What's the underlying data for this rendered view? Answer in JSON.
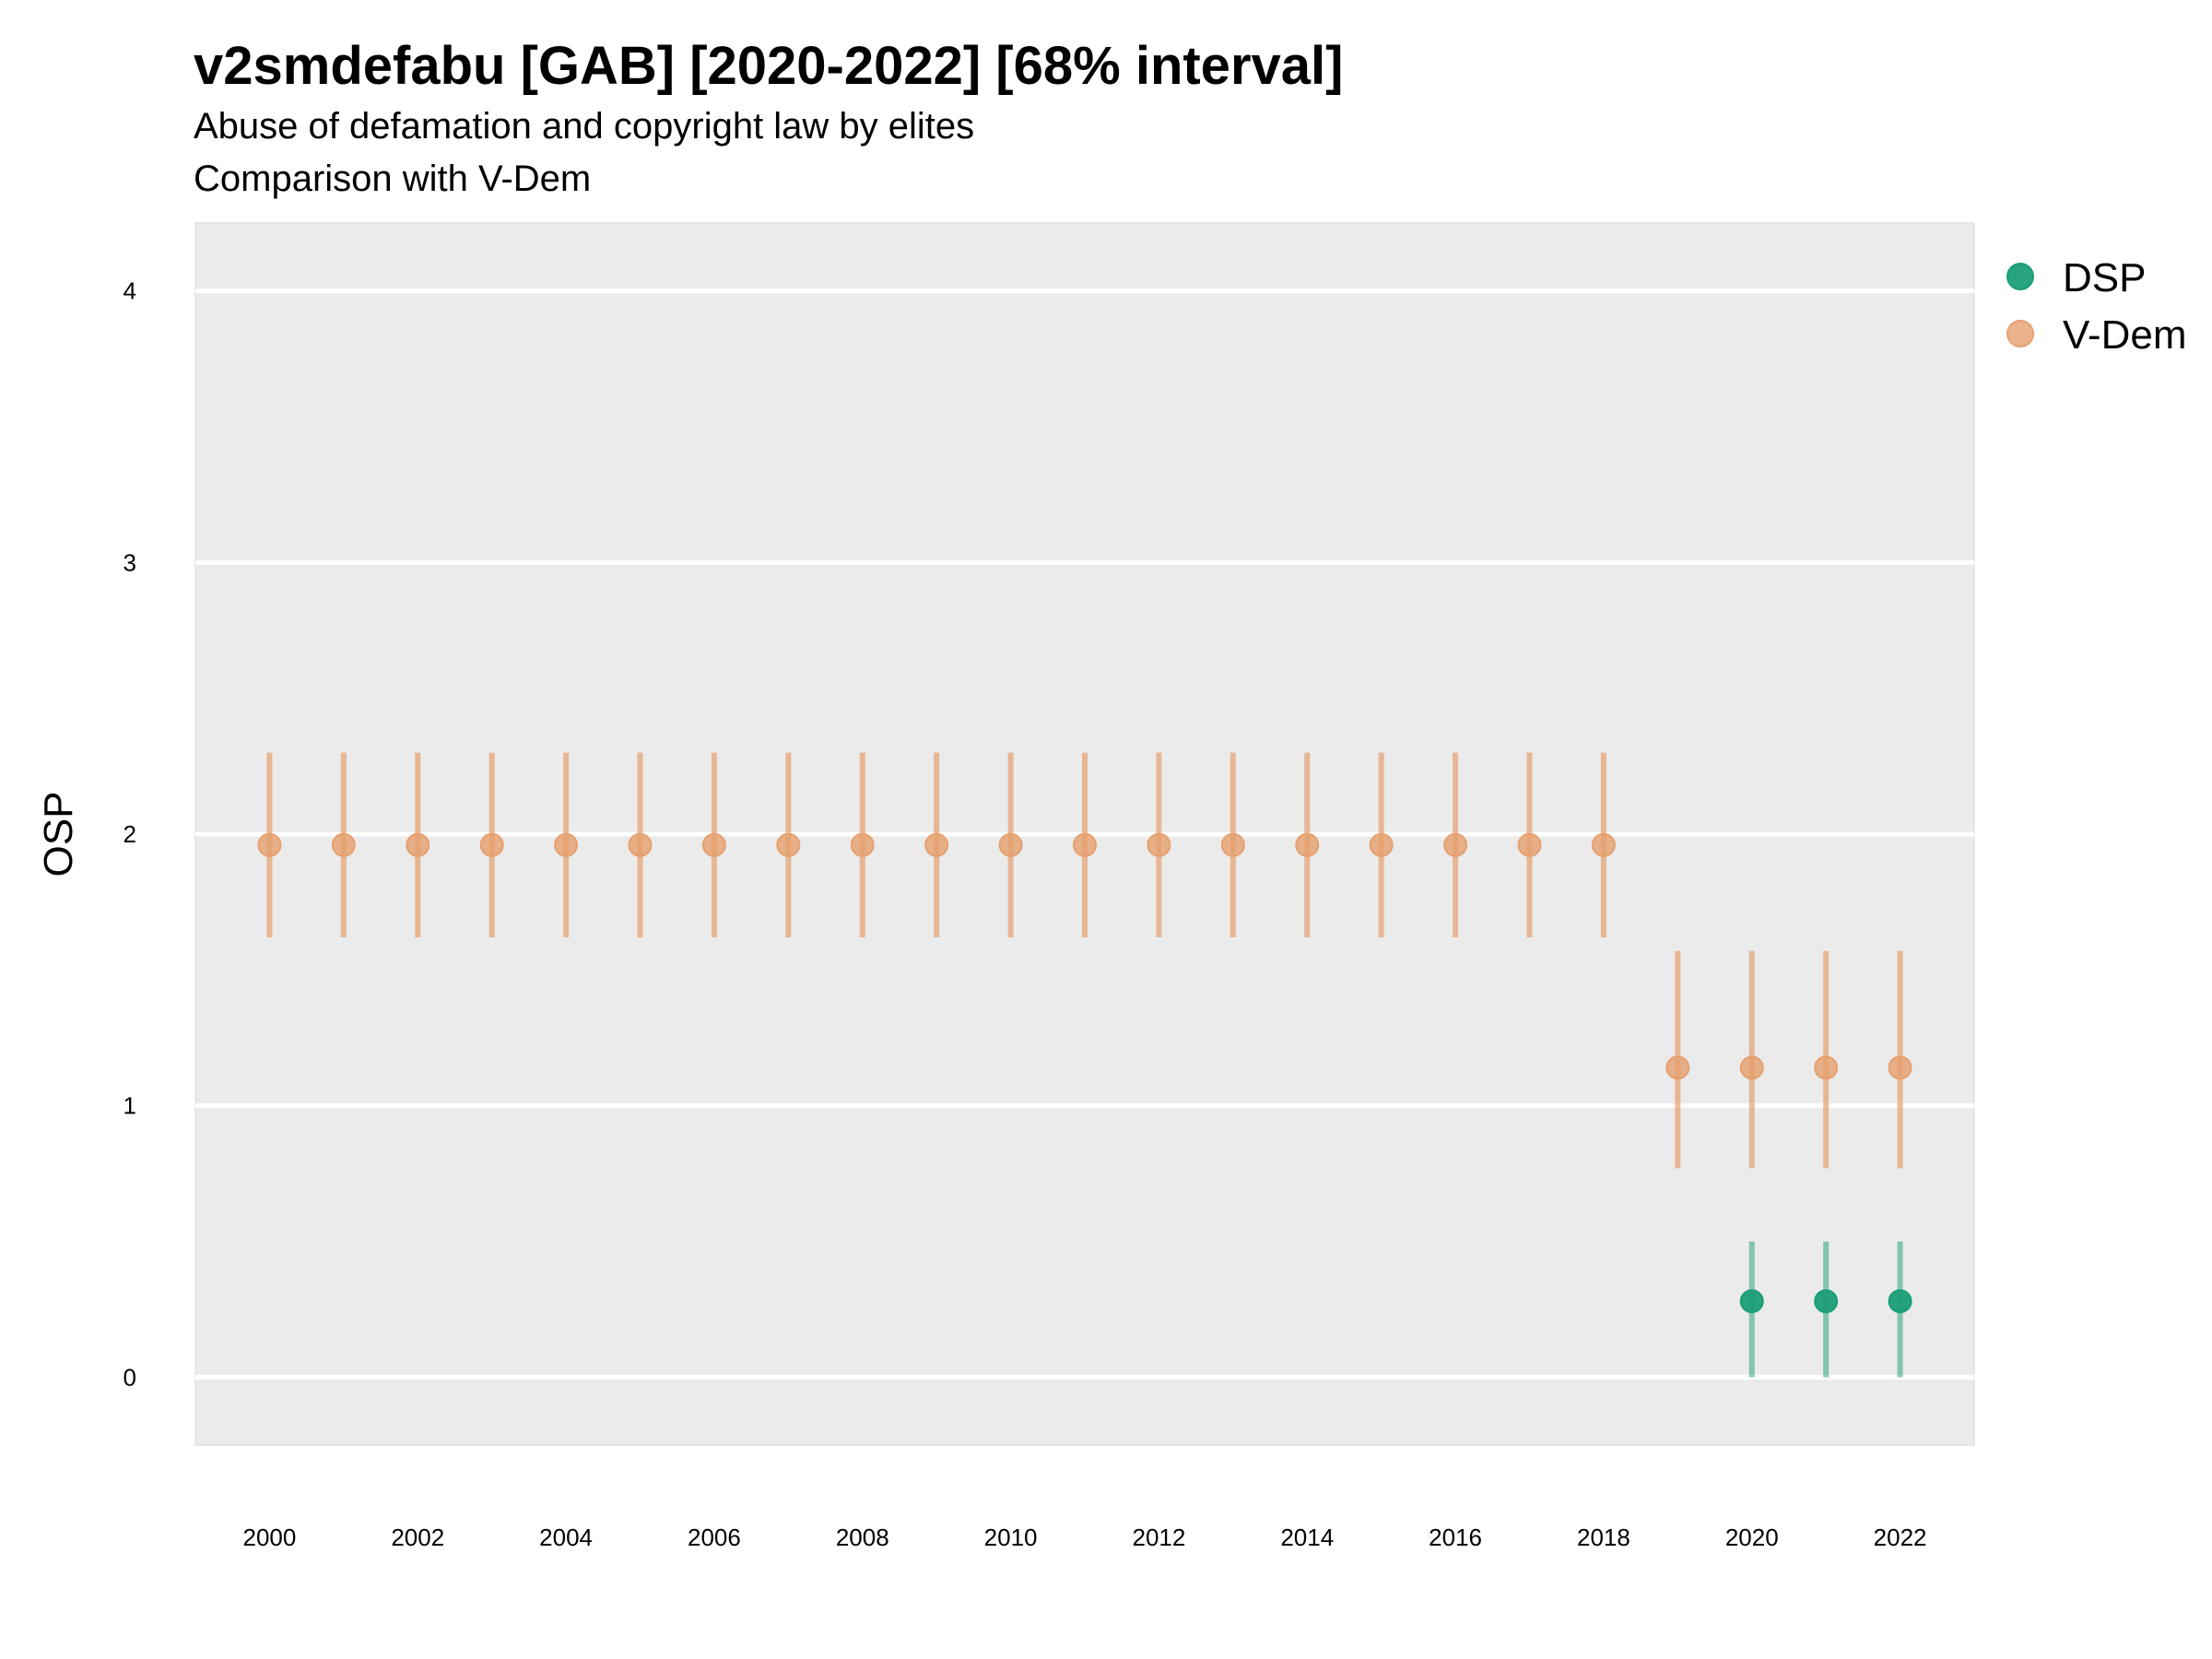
{
  "chart_data": {
    "type": "scatter",
    "title": "v2smdefabu [GAB] [2020-2022] [68% interval]",
    "subtitle_line1": "Abuse of defamation and copyright law by elites",
    "subtitle_line2": "Comparison with V-Dem",
    "ylabel": "OSP",
    "xlabel": "",
    "ylim": [
      -0.25,
      4.25
    ],
    "xlim": [
      1999,
      2023
    ],
    "x_ticks": [
      2000,
      2002,
      2004,
      2006,
      2008,
      2010,
      2012,
      2014,
      2016,
      2018,
      2020,
      2022
    ],
    "y_ticks": [
      0,
      1,
      2,
      3,
      4
    ],
    "grid": true,
    "legend_position": "right",
    "series": [
      {
        "name": "DSP",
        "color": "#1b9e77",
        "points": [
          {
            "x": 2020,
            "y": 0.28,
            "lo": 0.0,
            "hi": 0.5
          },
          {
            "x": 2021,
            "y": 0.28,
            "lo": 0.0,
            "hi": 0.5
          },
          {
            "x": 2022,
            "y": 0.28,
            "lo": 0.0,
            "hi": 0.5
          }
        ]
      },
      {
        "name": "V-Dem",
        "color": "#e6a06e",
        "points": [
          {
            "x": 2000,
            "y": 1.96,
            "lo": 1.62,
            "hi": 2.3
          },
          {
            "x": 2001,
            "y": 1.96,
            "lo": 1.62,
            "hi": 2.3
          },
          {
            "x": 2002,
            "y": 1.96,
            "lo": 1.62,
            "hi": 2.3
          },
          {
            "x": 2003,
            "y": 1.96,
            "lo": 1.62,
            "hi": 2.3
          },
          {
            "x": 2004,
            "y": 1.96,
            "lo": 1.62,
            "hi": 2.3
          },
          {
            "x": 2005,
            "y": 1.96,
            "lo": 1.62,
            "hi": 2.3
          },
          {
            "x": 2006,
            "y": 1.96,
            "lo": 1.62,
            "hi": 2.3
          },
          {
            "x": 2007,
            "y": 1.96,
            "lo": 1.62,
            "hi": 2.3
          },
          {
            "x": 2008,
            "y": 1.96,
            "lo": 1.62,
            "hi": 2.3
          },
          {
            "x": 2009,
            "y": 1.96,
            "lo": 1.62,
            "hi": 2.3
          },
          {
            "x": 2010,
            "y": 1.96,
            "lo": 1.62,
            "hi": 2.3
          },
          {
            "x": 2011,
            "y": 1.96,
            "lo": 1.62,
            "hi": 2.3
          },
          {
            "x": 2012,
            "y": 1.96,
            "lo": 1.62,
            "hi": 2.3
          },
          {
            "x": 2013,
            "y": 1.96,
            "lo": 1.62,
            "hi": 2.3
          },
          {
            "x": 2014,
            "y": 1.96,
            "lo": 1.62,
            "hi": 2.3
          },
          {
            "x": 2015,
            "y": 1.96,
            "lo": 1.62,
            "hi": 2.3
          },
          {
            "x": 2016,
            "y": 1.96,
            "lo": 1.62,
            "hi": 2.3
          },
          {
            "x": 2017,
            "y": 1.96,
            "lo": 1.62,
            "hi": 2.3
          },
          {
            "x": 2018,
            "y": 1.96,
            "lo": 1.62,
            "hi": 2.3
          },
          {
            "x": 2019,
            "y": 1.14,
            "lo": 0.77,
            "hi": 1.57
          },
          {
            "x": 2020,
            "y": 1.14,
            "lo": 0.77,
            "hi": 1.57
          },
          {
            "x": 2021,
            "y": 1.14,
            "lo": 0.77,
            "hi": 1.57
          },
          {
            "x": 2022,
            "y": 1.14,
            "lo": 0.77,
            "hi": 1.57
          }
        ]
      }
    ]
  }
}
